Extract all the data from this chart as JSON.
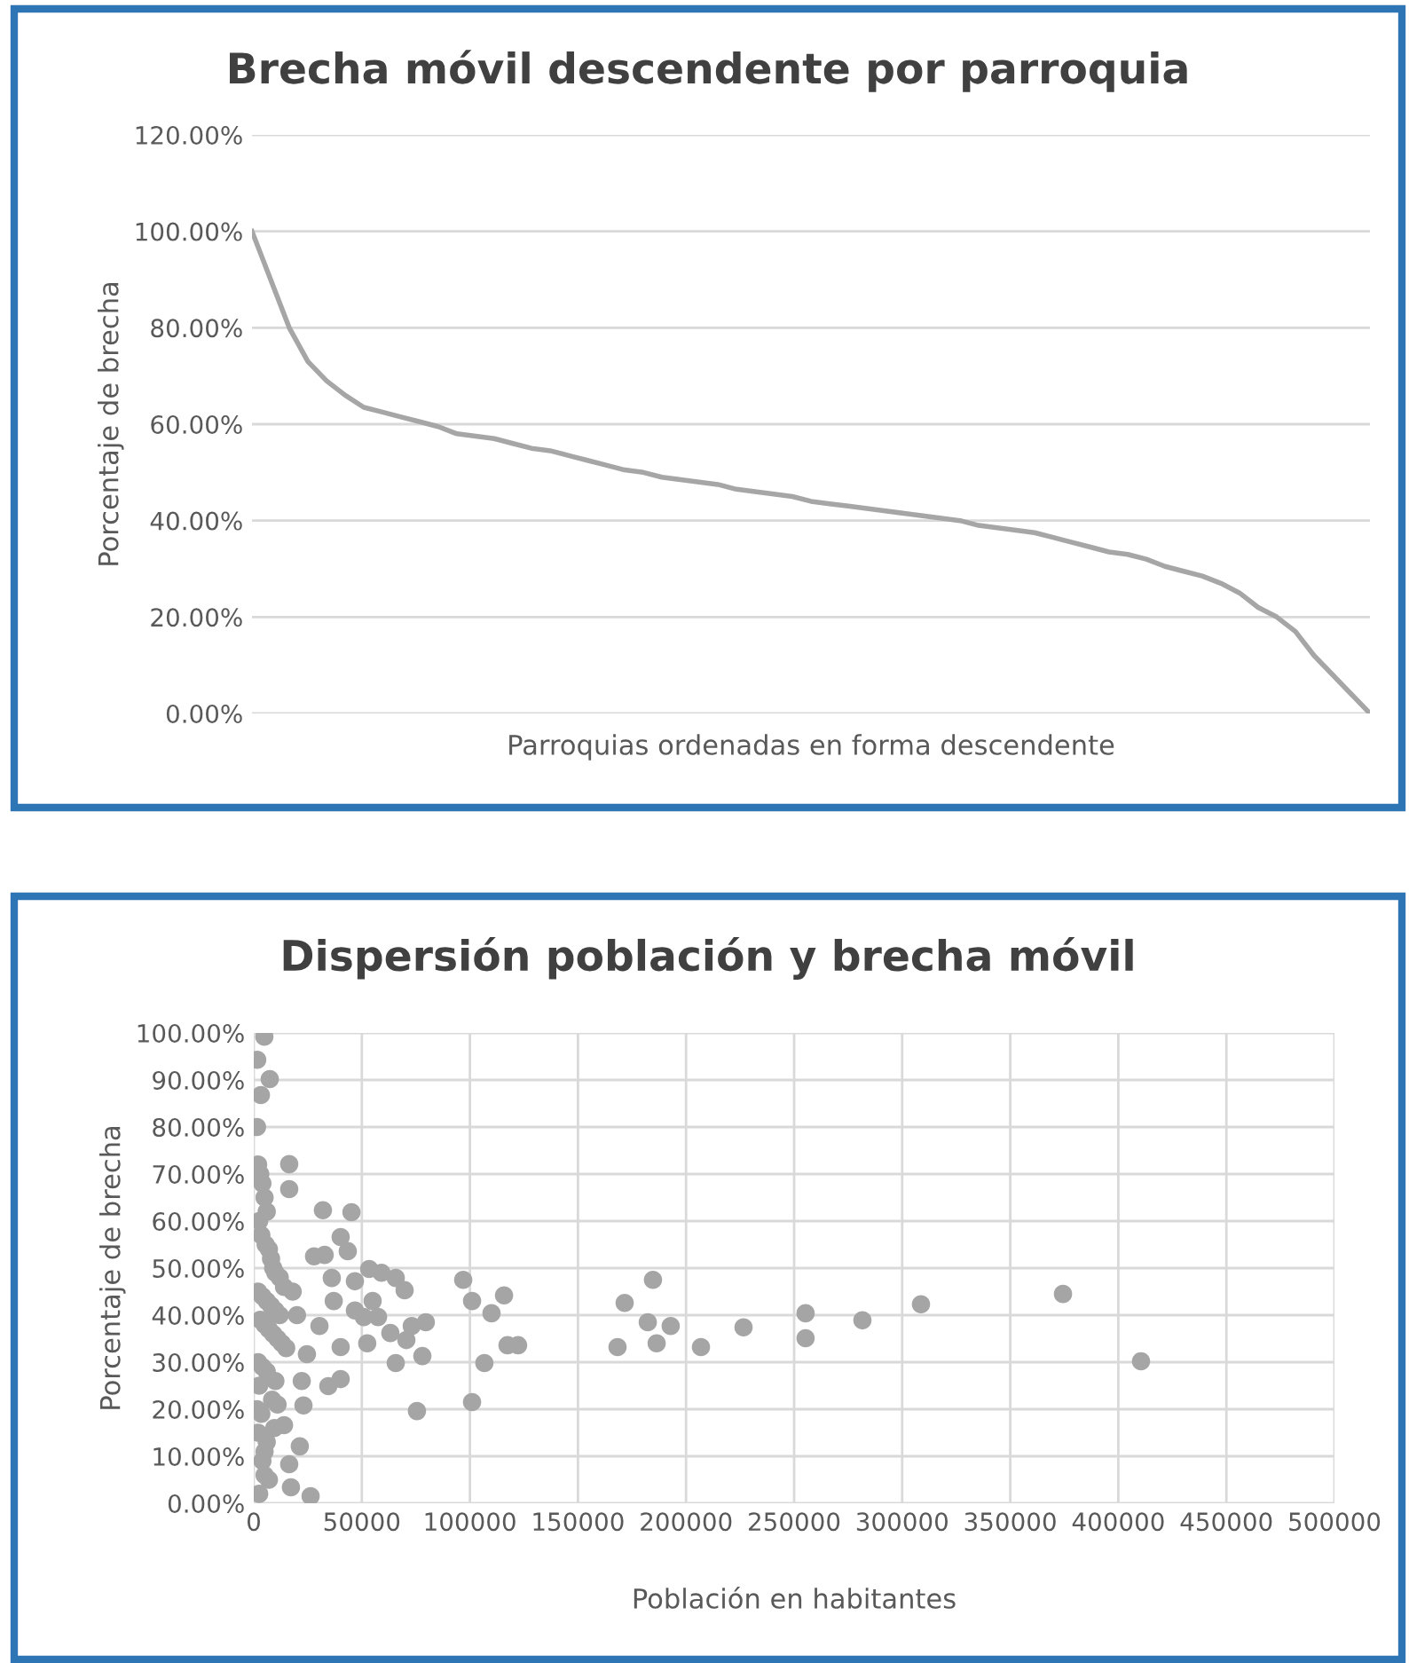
{
  "chart_data": [
    {
      "type": "line",
      "title": "Brecha móvil descendente por parroquia",
      "xlabel": "Parroquias ordenadas en forma descendente",
      "ylabel": "Porcentaje de brecha",
      "categories": [
        null,
        null,
        null,
        null,
        null,
        null,
        null,
        null,
        null,
        null,
        null,
        null,
        null,
        null,
        null,
        null,
        null,
        null,
        null,
        null,
        null,
        null,
        null,
        null,
        null,
        null,
        null,
        null,
        null,
        null,
        null,
        null,
        null,
        null,
        null,
        null,
        null,
        null,
        null,
        null,
        null,
        null,
        null,
        null,
        null,
        null,
        null,
        null,
        null,
        null,
        null,
        null,
        null,
        null,
        null,
        null,
        null,
        null,
        null,
        null,
        null
      ],
      "series": [
        {
          "color": "#a6a6a6",
          "values": [
            100,
            90,
            80,
            73,
            69,
            66,
            63.5,
            62.5,
            61.5,
            60.5,
            59.5,
            58,
            57.5,
            57,
            56,
            55,
            54.5,
            53.5,
            52.5,
            51.5,
            50.5,
            50,
            49,
            48.5,
            48,
            47.5,
            46.5,
            46,
            45.5,
            45,
            44,
            43.5,
            43,
            42.5,
            42,
            41.5,
            41,
            40.5,
            40,
            39,
            38.5,
            38,
            37.5,
            36.5,
            35.5,
            34.5,
            33.5,
            33,
            32,
            30.5,
            29.5,
            28.5,
            27,
            25,
            22,
            20,
            17,
            12,
            8,
            4,
            0
          ]
        }
      ],
      "ylim": [
        0,
        120
      ],
      "yticks": [
        {
          "value": 0,
          "label": "0.00%"
        },
        {
          "value": 20,
          "label": "20.00%"
        },
        {
          "value": 40,
          "label": "40.00%"
        },
        {
          "value": 60,
          "label": "60.00%"
        },
        {
          "value": 80,
          "label": "80.00%"
        },
        {
          "value": 100,
          "label": "100.00%"
        },
        {
          "value": 120,
          "label": "120.00%"
        }
      ],
      "grid": "y",
      "tick_labels": "y",
      "marker": "none",
      "line_style": "solid"
    },
    {
      "type": "scatter",
      "title": "Dispersión población y brecha móvil",
      "xlabel": "Población en habitantes",
      "ylabel": "Porcentaje de brecha",
      "series": [
        {
          "color": "#a5a5a5",
          "x": [
            184700,
            171600,
            182300,
            192900,
            186400,
            168300,
            206900,
            226600,
            255300,
            255300,
            281600,
            308700,
            374400,
            410500,
            96900,
            101000,
            115800,
            110000,
            117400,
            122300,
            106700,
            101000,
            75500,
            78000,
            65700,
            79600,
            73100,
            70600,
            63200,
            69800,
            65700,
            59100,
            53400,
            46800,
            55000,
            50900,
            52500,
            32000,
            45200,
            40200,
            43500,
            32800,
            37000,
            40200,
            40200,
            34500,
            23000,
            14000,
            21300,
            16400,
            17200,
            26300,
            16400,
            16400,
            7400,
            4900,
            1600,
            3300,
            27900,
            30400,
            24600,
            22200,
            46800,
            57500,
            36100,
            2000,
            3000,
            4000,
            5000,
            6000,
            2500,
            3500,
            5500,
            7000,
            8000,
            9000,
            10000,
            12000,
            14000,
            2000,
            4000,
            6000,
            8000,
            10000,
            12000,
            3000,
            5000,
            7000,
            9000,
            11000,
            13000,
            15000,
            18000,
            20000,
            2000,
            4000,
            6000,
            10000,
            2500,
            8500,
            11000,
            1500,
            3500,
            9500,
            2000,
            6000,
            5000,
            4000,
            5000,
            7000,
            2500,
            1500
          ],
          "values": [
            47.5,
            42.6,
            38.5,
            37.7,
            34,
            33.2,
            33.2,
            37.4,
            40.4,
            35.1,
            38.9,
            42.3,
            44.5,
            30.2,
            47.5,
            43,
            44.2,
            40.4,
            33.6,
            33.6,
            29.8,
            21.5,
            19.6,
            31.3,
            29.8,
            38.5,
            37.7,
            34.7,
            36.2,
            45.3,
            47.9,
            49,
            49.8,
            47.2,
            43,
            39.6,
            34,
            62.3,
            61.9,
            56.6,
            53.6,
            52.8,
            43,
            33.2,
            26.4,
            24.9,
            20.8,
            16.6,
            12.1,
            8.3,
            3.4,
            1.5,
            72.1,
            66.8,
            90.2,
            99.2,
            94.3,
            86.8,
            52.5,
            37.7,
            31.7,
            26,
            41,
            39.6,
            47.9,
            72,
            70,
            68,
            65,
            62,
            60,
            57,
            55,
            54,
            52,
            50,
            49,
            48,
            46,
            45,
            44,
            43,
            42,
            41,
            40,
            39,
            38,
            37,
            36,
            35,
            34,
            33,
            45,
            40,
            30,
            29,
            28,
            26,
            25,
            22,
            21,
            20,
            19,
            16,
            15,
            13,
            11,
            9,
            6,
            5,
            2,
            80
          ]
        }
      ],
      "xlim": [
        0,
        500000
      ],
      "xticks": [
        0,
        50000,
        100000,
        150000,
        200000,
        250000,
        300000,
        350000,
        400000,
        450000,
        500000
      ],
      "ylim": [
        0,
        100
      ],
      "yticks": [
        {
          "value": 0,
          "label": "0.00%"
        },
        {
          "value": 10,
          "label": "10.00%"
        },
        {
          "value": 20,
          "label": "20.00%"
        },
        {
          "value": 30,
          "label": "30.00%"
        },
        {
          "value": 40,
          "label": "40.00%"
        },
        {
          "value": 50,
          "label": "50.00%"
        },
        {
          "value": 60,
          "label": "60.00%"
        },
        {
          "value": 70,
          "label": "70.00%"
        },
        {
          "value": 80,
          "label": "80.00%"
        },
        {
          "value": 90,
          "label": "90.00%"
        },
        {
          "value": 100,
          "label": "100.00%"
        }
      ],
      "grid": true,
      "marker": "circle"
    }
  ]
}
